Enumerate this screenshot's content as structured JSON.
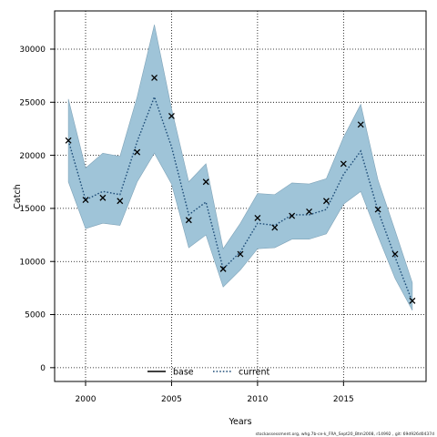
{
  "chart_data": {
    "type": "area",
    "xlabel": "Years",
    "ylabel": "Catch",
    "xlim": [
      1998.2,
      2019.8
    ],
    "ylim": [
      -1300,
      33600
    ],
    "x_ticks": [
      2000,
      2005,
      2010,
      2015
    ],
    "y_ticks": [
      0,
      5000,
      10000,
      15000,
      20000,
      25000,
      30000
    ],
    "grid": true,
    "grid_style": "dotted",
    "legend": {
      "placement": "bottom-center",
      "entries": [
        {
          "label": "base",
          "style": "solid",
          "color": "#000000"
        },
        {
          "label": "current",
          "style": "dotted",
          "color": "#1f4e79"
        }
      ]
    },
    "x": [
      1999,
      2000,
      2001,
      2002,
      2003,
      2004,
      2005,
      2006,
      2007,
      2008,
      2009,
      2010,
      2011,
      2012,
      2013,
      2014,
      2015,
      2016,
      2017,
      2018,
      2019
    ],
    "series": [
      {
        "name": "current",
        "kind": "line",
        "values": [
          21400,
          15800,
          16600,
          16300,
          21300,
          25500,
          20800,
          14400,
          15600,
          9300,
          10900,
          13600,
          13400,
          14400,
          14400,
          14900,
          18200,
          20400,
          14800,
          10400,
          6200
        ],
        "color": "#1f4e79"
      },
      {
        "kind": "band_upper",
        "values": [
          25300,
          18800,
          20200,
          19900,
          25500,
          32300,
          24400,
          17500,
          19200,
          11200,
          13600,
          16400,
          16300,
          17400,
          17300,
          17800,
          21700,
          24800,
          17700,
          12900,
          8000
        ]
      },
      {
        "kind": "band_lower",
        "values": [
          17500,
          13100,
          13600,
          13400,
          17500,
          20200,
          17300,
          11300,
          12500,
          7600,
          9200,
          11200,
          11300,
          12100,
          12100,
          12600,
          15400,
          16600,
          12400,
          8400,
          5400
        ]
      },
      {
        "kind": "points",
        "marker": "x",
        "values": [
          21400,
          15800,
          16000,
          15700,
          20300,
          27300,
          23700,
          13900,
          17500,
          9300,
          10700,
          14100,
          13200,
          14300,
          14700,
          15700,
          19200,
          22900,
          14900,
          10700,
          6300
        ]
      }
    ],
    "band_color": "#9fc4d8",
    "footnote": "stockassessment.org, whg.7b-ce-k_FRA_Sept20_Btm2008, r14992 , git: 69d926d0437d"
  }
}
